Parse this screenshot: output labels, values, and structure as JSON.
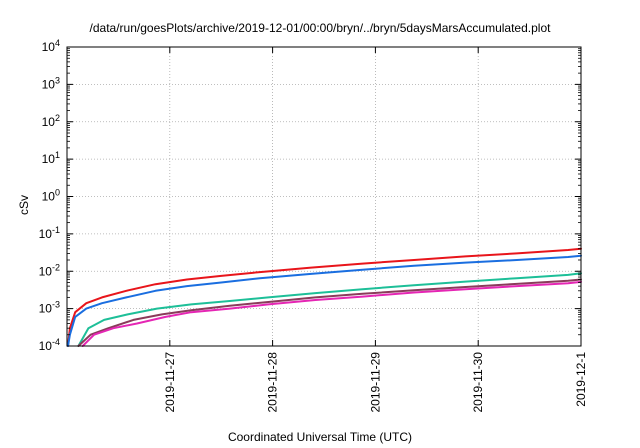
{
  "chart_data": {
    "type": "line",
    "title": "/data/run/goesPlots/archive/2019-12-01/00:00/bryn/../bryn/5daysMarsAccumulated.plot",
    "xlabel": "Coordinated Universal Time (UTC)",
    "ylabel": "cSv",
    "y_scale": "log",
    "ylim": [
      0.0001,
      10000
    ],
    "y_ticks": [
      {
        "value": 0.0001,
        "base": "10",
        "exp": "-4"
      },
      {
        "value": 0.001,
        "base": "10",
        "exp": "-3"
      },
      {
        "value": 0.01,
        "base": "10",
        "exp": "-2"
      },
      {
        "value": 0.1,
        "base": "10",
        "exp": "-1"
      },
      {
        "value": 1,
        "base": "10",
        "exp": "0"
      },
      {
        "value": 10,
        "base": "10",
        "exp": "1"
      },
      {
        "value": 100,
        "base": "10",
        "exp": "2"
      },
      {
        "value": 1000,
        "base": "10",
        "exp": "3"
      },
      {
        "value": 10000,
        "base": "10",
        "exp": "4"
      }
    ],
    "xlim": [
      "2019-11-26T00:00",
      "2019-12-01T00:00"
    ],
    "x_ticks": [
      "2019-11-27",
      "2019-11-28",
      "2019-11-29",
      "2019-11-30",
      "2019-12-1"
    ],
    "x_tick_dates": [
      "2019-11-27T00:00",
      "2019-11-28T00:00",
      "2019-11-29T00:00",
      "2019-11-30T00:00",
      "2019-12-01T00:00"
    ],
    "grid": true,
    "legend": "none",
    "series": [
      {
        "color": "#e8151b",
        "x": [
          "2019-11-26T00:14",
          "2019-11-26T00:40",
          "2019-11-26T01:55",
          "2019-11-26T04:30",
          "2019-11-26T08:10",
          "2019-11-26T13:50",
          "2019-11-26T20:40",
          "2019-11-27T04:00",
          "2019-11-27T12:00",
          "2019-11-27T21:00",
          "2019-11-28T09:00",
          "2019-11-28T21:00",
          "2019-11-29T09:00",
          "2019-11-29T21:00",
          "2019-11-30T09:00",
          "2019-11-30T21:00",
          "2019-12-01T00:00"
        ],
        "y": [
          0.0001,
          0.0003,
          0.0008,
          0.0014,
          0.002,
          0.003,
          0.0045,
          0.006,
          0.0075,
          0.0095,
          0.0125,
          0.016,
          0.02,
          0.025,
          0.03,
          0.037,
          0.04
        ]
      },
      {
        "color": "#1a6ee0",
        "x": [
          "2019-11-26T00:14",
          "2019-11-26T00:40",
          "2019-11-26T01:55",
          "2019-11-26T04:30",
          "2019-11-26T08:10",
          "2019-11-26T13:50",
          "2019-11-26T20:40",
          "2019-11-27T04:00",
          "2019-11-27T12:00",
          "2019-11-27T21:00",
          "2019-11-28T09:00",
          "2019-11-28T21:00",
          "2019-11-29T09:00",
          "2019-11-29T21:00",
          "2019-11-30T09:00",
          "2019-11-30T21:00",
          "2019-12-01T00:00"
        ],
        "y": [
          0.0001,
          0.0002,
          0.0006,
          0.001,
          0.0014,
          0.002,
          0.003,
          0.004,
          0.005,
          0.0065,
          0.0085,
          0.011,
          0.014,
          0.017,
          0.02,
          0.024,
          0.026
        ]
      },
      {
        "color": "#1dbf98",
        "x": [
          "2019-11-26T02:40",
          "2019-11-26T05:00",
          "2019-11-26T08:40",
          "2019-11-26T14:10",
          "2019-11-26T21:00",
          "2019-11-27T05:00",
          "2019-11-27T14:00",
          "2019-11-27T23:00",
          "2019-11-28T10:00",
          "2019-11-28T21:00",
          "2019-11-29T09:00",
          "2019-11-29T21:00",
          "2019-11-30T09:00",
          "2019-11-30T21:00",
          "2019-12-01T00:00"
        ],
        "y": [
          0.0001,
          0.0003,
          0.0005,
          0.0007,
          0.001,
          0.0013,
          0.0016,
          0.002,
          0.0026,
          0.0033,
          0.0042,
          0.0053,
          0.0065,
          0.008,
          0.0088
        ]
      },
      {
        "color": "#8a3b5a",
        "x": [
          "2019-11-26T02:40",
          "2019-11-26T05:30",
          "2019-11-26T09:40",
          "2019-11-26T15:30",
          "2019-11-26T22:10",
          "2019-11-27T05:00",
          "2019-11-27T14:00",
          "2019-11-27T23:00",
          "2019-11-28T10:00",
          "2019-11-28T21:00",
          "2019-11-29T09:00",
          "2019-11-29T21:00",
          "2019-11-30T09:00",
          "2019-11-30T21:00",
          "2019-12-01T00:00"
        ],
        "y": [
          0.0001,
          0.0002,
          0.0003,
          0.0005,
          0.0007,
          0.0009,
          0.0012,
          0.0015,
          0.002,
          0.0025,
          0.0031,
          0.0038,
          0.0046,
          0.0056,
          0.006
        ]
      },
      {
        "color": "#e526b4",
        "x": [
          "2019-11-26T03:40",
          "2019-11-26T06:20",
          "2019-11-26T10:50",
          "2019-11-26T16:20",
          "2019-11-26T23:00",
          "2019-11-27T05:00",
          "2019-11-27T14:00",
          "2019-11-27T23:00",
          "2019-11-28T10:00",
          "2019-11-28T21:00",
          "2019-11-29T09:00",
          "2019-11-29T21:00",
          "2019-11-30T09:00",
          "2019-11-30T21:00",
          "2019-12-01T00:00"
        ],
        "y": [
          0.0001,
          0.0002,
          0.0003,
          0.0004,
          0.0006,
          0.0008,
          0.001,
          0.0013,
          0.0017,
          0.0021,
          0.0027,
          0.0033,
          0.004,
          0.0048,
          0.0052
        ]
      }
    ]
  }
}
